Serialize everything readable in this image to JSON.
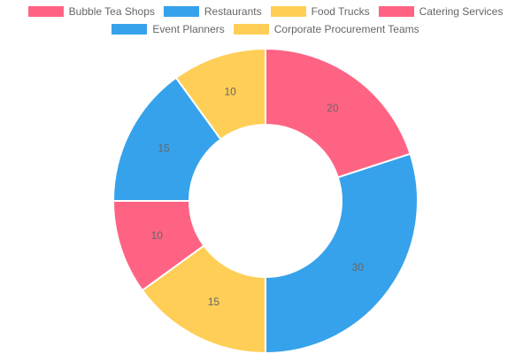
{
  "chart_data": {
    "type": "pie",
    "variant": "doughnut",
    "title": "",
    "legend_position": "top",
    "categories": [
      "Bubble Tea Shops",
      "Restaurants",
      "Food Trucks",
      "Catering Services",
      "Event Planners",
      "Corporate Procurement Teams"
    ],
    "values": [
      20,
      30,
      15,
      10,
      15,
      10
    ],
    "colors": [
      "#ff6384",
      "#36a2eb",
      "#ffce56",
      "#ff6384",
      "#36a2eb",
      "#ffce56"
    ]
  }
}
